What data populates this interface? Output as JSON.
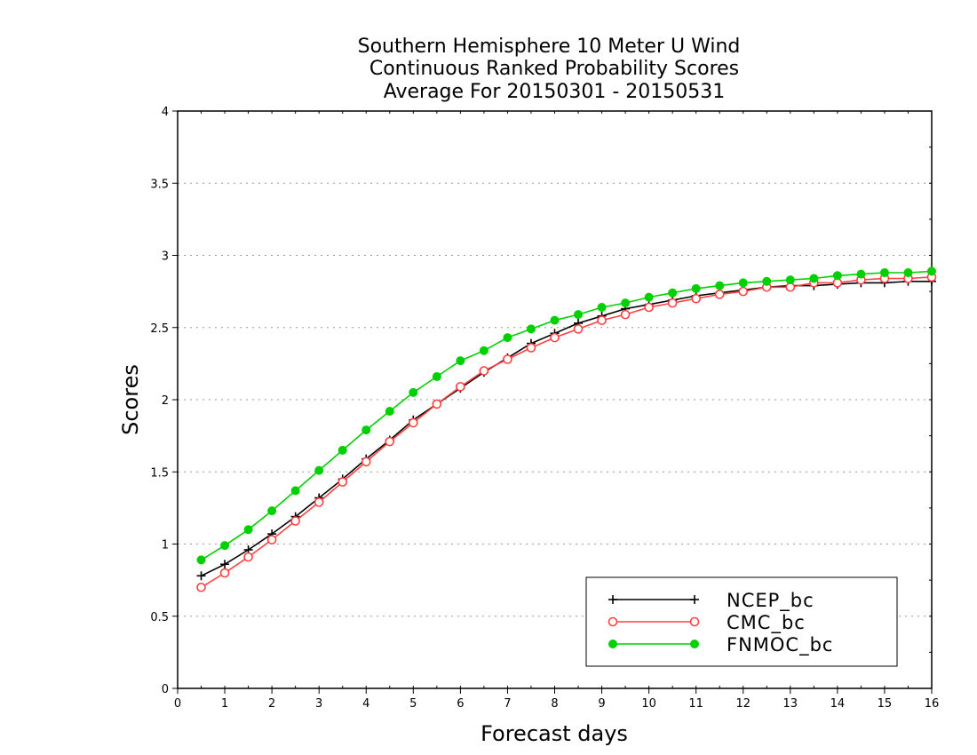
{
  "chart_data": {
    "type": "line",
    "title_lines": [
      "Southern Hemisphere 10 Meter U Wind",
      "Continuous Ranked Probability Scores",
      "Average For 20150301 - 20150531"
    ],
    "xlabel": "Forecast days",
    "ylabel": "Scores",
    "xlim": [
      0,
      16
    ],
    "ylim": [
      0,
      4
    ],
    "x_ticks": [
      "0",
      "1",
      "2",
      "3",
      "4",
      "5",
      "6",
      "7",
      "8",
      "9",
      "10",
      "11",
      "12",
      "13",
      "14",
      "15",
      "16"
    ],
    "y_ticks": [
      "0",
      "0.5",
      "1",
      "1.5",
      "2",
      "2.5",
      "3",
      "3.5",
      "4"
    ],
    "grid": "horizontal dotted",
    "legend_position": "bottom-right",
    "x": [
      0.5,
      1,
      1.5,
      2,
      2.5,
      3,
      3.5,
      4,
      4.5,
      5,
      5.5,
      6,
      6.5,
      7,
      7.5,
      8,
      8.5,
      9,
      9.5,
      10,
      10.5,
      11,
      11.5,
      12,
      12.5,
      13,
      13.5,
      14,
      14.5,
      15,
      15.5,
      16
    ],
    "series": [
      {
        "name": "NCEP_bc",
        "color": "#000000",
        "marker": "plus",
        "values": [
          0.78,
          0.86,
          0.96,
          1.07,
          1.19,
          1.32,
          1.45,
          1.59,
          1.72,
          1.86,
          1.97,
          2.08,
          2.19,
          2.29,
          2.39,
          2.46,
          2.53,
          2.58,
          2.63,
          2.66,
          2.69,
          2.72,
          2.74,
          2.76,
          2.78,
          2.79,
          2.79,
          2.8,
          2.81,
          2.81,
          2.82,
          2.82
        ]
      },
      {
        "name": "CMC_bc",
        "color": "#ff4040",
        "marker": "open-circle",
        "values": [
          0.7,
          0.8,
          0.91,
          1.03,
          1.16,
          1.29,
          1.43,
          1.57,
          1.71,
          1.84,
          1.97,
          2.09,
          2.2,
          2.28,
          2.36,
          2.43,
          2.49,
          2.55,
          2.59,
          2.64,
          2.67,
          2.7,
          2.73,
          2.75,
          2.78,
          2.78,
          2.81,
          2.81,
          2.83,
          2.84,
          2.84,
          2.85
        ]
      },
      {
        "name": "FNMOC_bc",
        "color": "#00d000",
        "marker": "filled-circle",
        "values": [
          0.89,
          0.99,
          1.1,
          1.23,
          1.37,
          1.51,
          1.65,
          1.79,
          1.92,
          2.05,
          2.16,
          2.27,
          2.34,
          2.43,
          2.49,
          2.55,
          2.59,
          2.64,
          2.67,
          2.71,
          2.74,
          2.77,
          2.79,
          2.81,
          2.82,
          2.83,
          2.84,
          2.86,
          2.87,
          2.88,
          2.88,
          2.89
        ]
      }
    ]
  }
}
